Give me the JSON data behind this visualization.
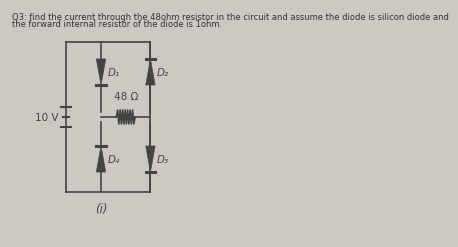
{
  "title_line1": "Q3: find the current through the 48ohm resistor in the circuit and assume the diode is silicon diode and",
  "title_line2": "the forward internal resistor of the diode is 1ohm.",
  "bg_color": "#ccc9c3",
  "line_color": "#444444",
  "voltage_label": "10 V",
  "resistor_label": "48 Ω",
  "d1_label": "D₁",
  "d2_label": "D₂",
  "d3_label": "D₃",
  "d4_label": "D₄",
  "label_i": "(i)",
  "title_fontsize": 6.0,
  "circuit_fontsize": 7.5
}
